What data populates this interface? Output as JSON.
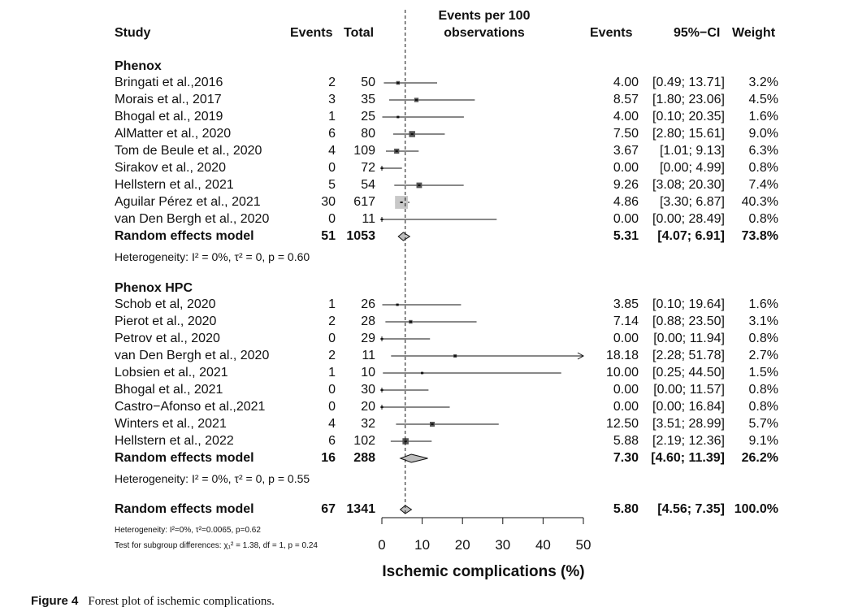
{
  "headers": {
    "study": "Study",
    "events": "Events",
    "total": "Total",
    "plot_line1": "Events per 100",
    "plot_line2": "observations",
    "events_right": "Events",
    "ci": "95%−CI",
    "weight": "Weight"
  },
  "het": {
    "phenox": "Heterogeneity: I² = 0%, τ² = 0, p = 0.60",
    "hpc": "Heterogeneity: I² = 0%, τ² = 0, p = 0.55",
    "overall": "Heterogeneity: I²=0%, τ²=0.0065, p=0.62",
    "subgroup": "Test for subgroup differences: χ₁² = 1.38, df = 1, p = 0.24"
  },
  "caption": {
    "label": "Figure 4",
    "text": "Forest plot of ischemic complications."
  },
  "chart_data": {
    "type": "forest",
    "xlabel": "Ischemic complications (%)",
    "xlim": [
      0,
      50
    ],
    "xticks": [
      "0",
      "10",
      "20",
      "30",
      "40",
      "50"
    ],
    "reference_line": 5.8,
    "groups": [
      {
        "name": "Phenox",
        "studies": [
          {
            "study": "Bringati et al.,2016",
            "events": "2",
            "total": "50",
            "est": "4.00",
            "ci": "[0.49; 13.71]",
            "weight": "3.2%",
            "x": 4.0,
            "lo": 0.49,
            "hi": 13.71,
            "w": 3.2
          },
          {
            "study": "Morais et al., 2017",
            "events": "3",
            "total": "35",
            "est": "8.57",
            "ci": "[1.80; 23.06]",
            "weight": "4.5%",
            "x": 8.57,
            "lo": 1.8,
            "hi": 23.06,
            "w": 4.5
          },
          {
            "study": "Bhogal et al., 2019",
            "events": "1",
            "total": "25",
            "est": "4.00",
            "ci": "[0.10; 20.35]",
            "weight": "1.6%",
            "x": 4.0,
            "lo": 0.1,
            "hi": 20.35,
            "w": 1.6
          },
          {
            "study": "AlMatter et al., 2020",
            "events": "6",
            "total": "80",
            "est": "7.50",
            "ci": "[2.80; 15.61]",
            "weight": "9.0%",
            "x": 7.5,
            "lo": 2.8,
            "hi": 15.61,
            "w": 9.0
          },
          {
            "study": "Tom de Beule et al., 2020",
            "events": "4",
            "total": "109",
            "est": "3.67",
            "ci": "[1.01; 9.13]",
            "weight": "6.3%",
            "x": 3.67,
            "lo": 1.01,
            "hi": 9.13,
            "w": 6.3
          },
          {
            "study": "Sirakov et al., 2020",
            "events": "0",
            "total": "72",
            "est": "0.00",
            "ci": "[0.00; 4.99]",
            "weight": "0.8%",
            "x": 0.0,
            "lo": 0.0,
            "hi": 4.99,
            "w": 0.8
          },
          {
            "study": "Hellstern et al., 2021",
            "events": "5",
            "total": "54",
            "est": "9.26",
            "ci": "[3.08; 20.30]",
            "weight": "7.4%",
            "x": 9.26,
            "lo": 3.08,
            "hi": 20.3,
            "w": 7.4
          },
          {
            "study": "Aguilar Pérez et al., 2021",
            "events": "30",
            "total": "617",
            "est": "4.86",
            "ci": "[3.30; 6.87]",
            "weight": "40.3%",
            "x": 4.86,
            "lo": 3.3,
            "hi": 6.87,
            "w": 40.3
          },
          {
            "study": "van Den Bergh et al., 2020",
            "events": "0",
            "total": "11",
            "est": "0.00",
            "ci": "[0.00; 28.49]",
            "weight": "0.8%",
            "x": 0.0,
            "lo": 0.0,
            "hi": 28.49,
            "w": 0.8
          }
        ],
        "summary": {
          "label": "Random effects model",
          "events": "51",
          "total": "1053",
          "est": "5.31",
          "ci": "[4.07; 6.91]",
          "weight": "73.8%",
          "x": 5.31,
          "lo": 4.07,
          "hi": 6.91
        }
      },
      {
        "name": "Phenox HPC",
        "studies": [
          {
            "study": "Schob et al, 2020",
            "events": "1",
            "total": "26",
            "est": "3.85",
            "ci": "[0.10; 19.64]",
            "weight": "1.6%",
            "x": 3.85,
            "lo": 0.1,
            "hi": 19.64,
            "w": 1.6
          },
          {
            "study": "Pierot et al., 2020",
            "events": "2",
            "total": "28",
            "est": "7.14",
            "ci": "[0.88; 23.50]",
            "weight": "3.1%",
            "x": 7.14,
            "lo": 0.88,
            "hi": 23.5,
            "w": 3.1
          },
          {
            "study": "Petrov et al., 2020",
            "events": "0",
            "total": "29",
            "est": "0.00",
            "ci": "[0.00; 11.94]",
            "weight": "0.8%",
            "x": 0.0,
            "lo": 0.0,
            "hi": 11.94,
            "w": 0.8
          },
          {
            "study": "van Den Bergh et al., 2020",
            "events": "2",
            "total": "11",
            "est": "18.18",
            "ci": "[2.28; 51.78]",
            "weight": "2.7%",
            "x": 18.18,
            "lo": 2.28,
            "hi": 51.78,
            "w": 2.7
          },
          {
            "study": "Lobsien et al., 2021",
            "events": "1",
            "total": "10",
            "est": "10.00",
            "ci": "[0.25; 44.50]",
            "weight": "1.5%",
            "x": 10.0,
            "lo": 0.25,
            "hi": 44.5,
            "w": 1.5
          },
          {
            "study": "Bhogal et al., 2021",
            "events": "0",
            "total": "30",
            "est": "0.00",
            "ci": "[0.00; 11.57]",
            "weight": "0.8%",
            "x": 0.0,
            "lo": 0.0,
            "hi": 11.57,
            "w": 0.8
          },
          {
            "study": "Castro−Afonso et al.,2021",
            "events": "0",
            "total": "20",
            "est": "0.00",
            "ci": "[0.00; 16.84]",
            "weight": "0.8%",
            "x": 0.0,
            "lo": 0.0,
            "hi": 16.84,
            "w": 0.8
          },
          {
            "study": "Winters et al., 2021",
            "events": "4",
            "total": "32",
            "est": "12.50",
            "ci": "[3.51; 28.99]",
            "weight": "5.7%",
            "x": 12.5,
            "lo": 3.51,
            "hi": 28.99,
            "w": 5.7
          },
          {
            "study": "Hellstern et al., 2022",
            "events": "6",
            "total": "102",
            "est": "5.88",
            "ci": "[2.19; 12.36]",
            "weight": "9.1%",
            "x": 5.88,
            "lo": 2.19,
            "hi": 12.36,
            "w": 9.1
          }
        ],
        "summary": {
          "label": "Random effects model",
          "events": "16",
          "total": "288",
          "est": "7.30",
          "ci": "[4.60; 11.39]",
          "weight": "26.2%",
          "x": 7.3,
          "lo": 4.6,
          "hi": 11.39
        }
      }
    ],
    "overall": {
      "label": "Random effects model",
      "events": "67",
      "total": "1341",
      "est": "5.80",
      "ci": "[4.56; 7.35]",
      "weight": "100.0%",
      "x": 5.8,
      "lo": 4.56,
      "hi": 7.35
    }
  }
}
